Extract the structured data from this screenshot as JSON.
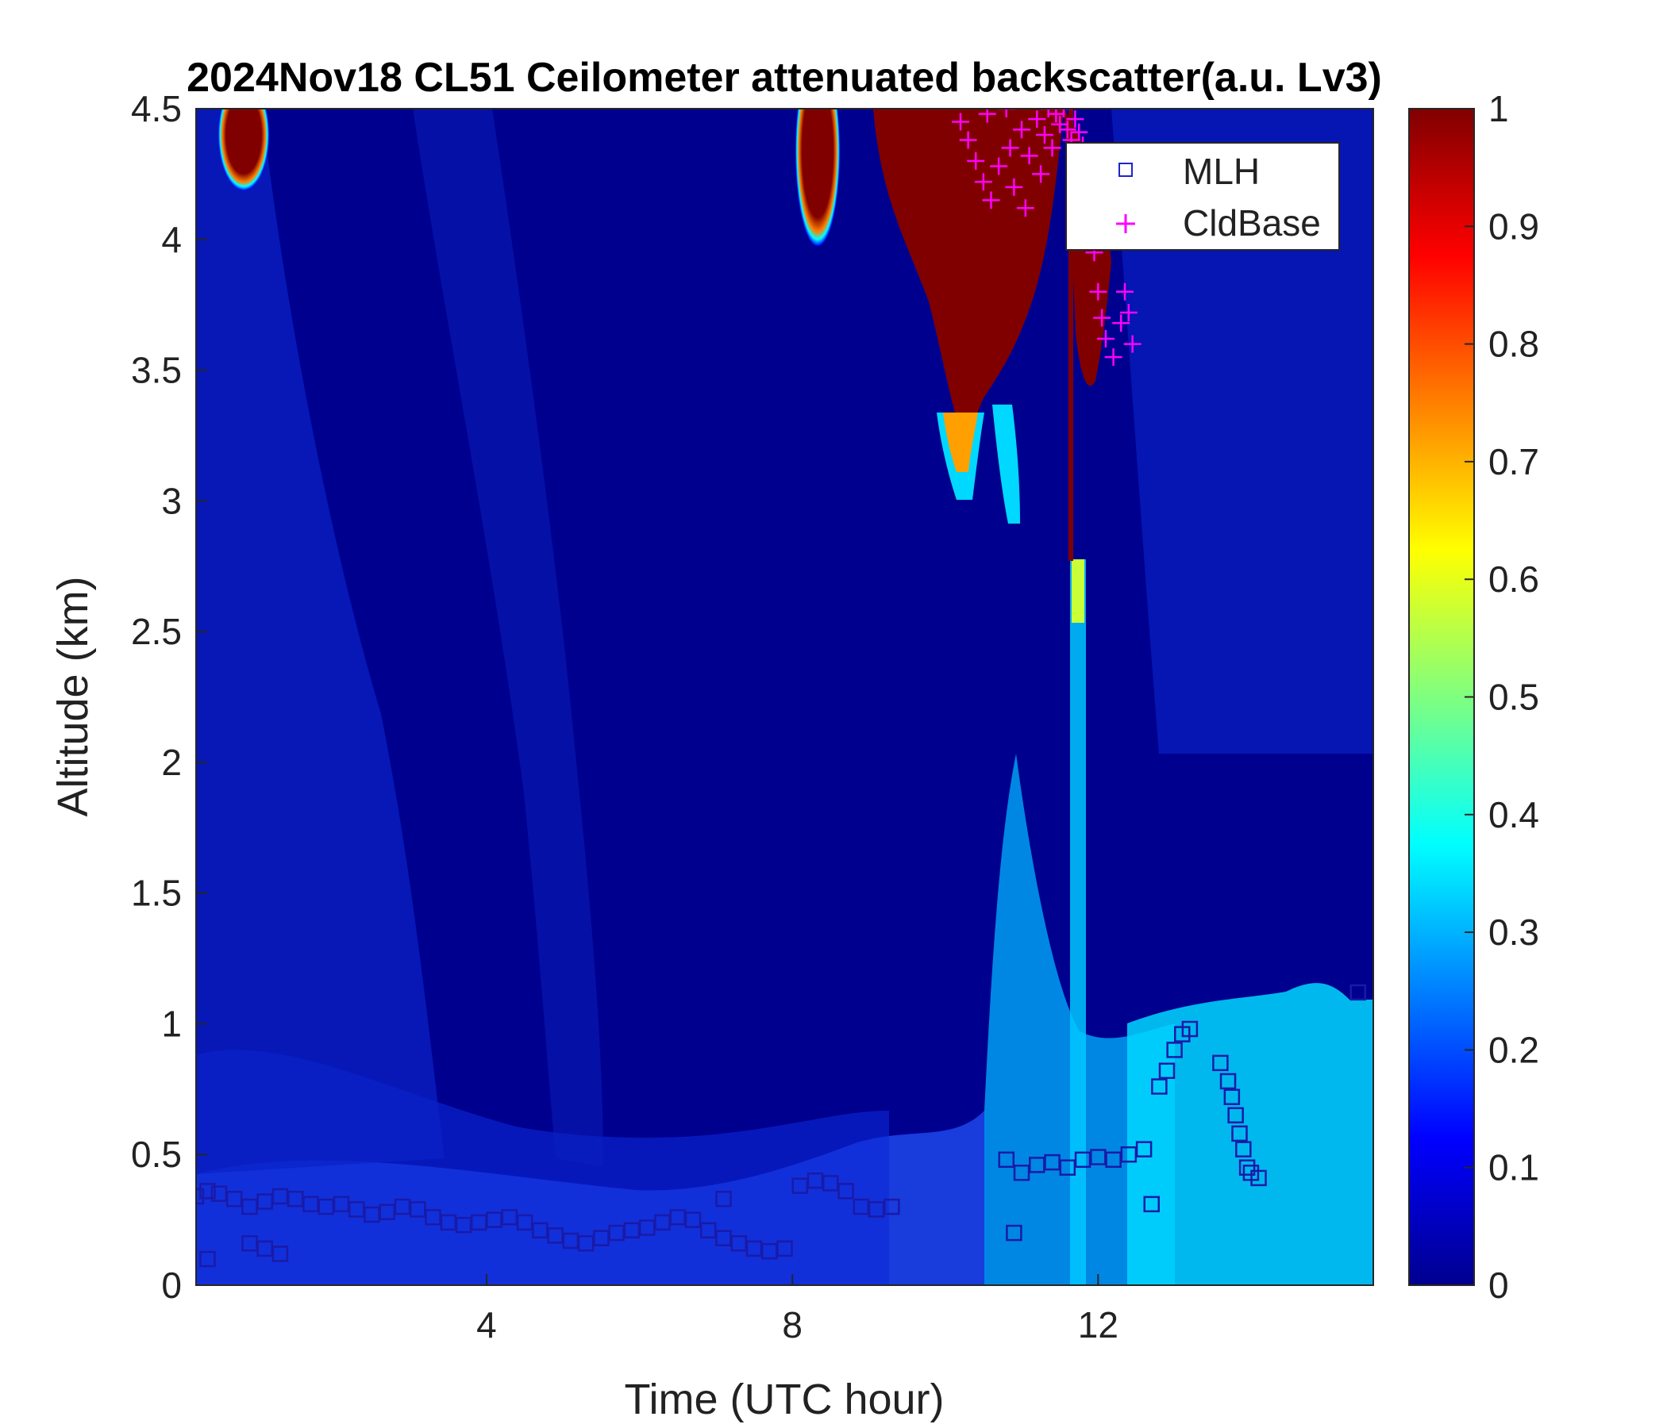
{
  "chart_data": {
    "type": "heatmap",
    "title": "2024Nov18 CL51 Ceilometer attenuated backscatter(a.u. Lv3)",
    "xlabel": "Time (UTC hour)",
    "ylabel": "Altitude (km)",
    "xlim": [
      0.2,
      15.6
    ],
    "ylim": [
      0,
      4.5
    ],
    "x_ticks": [
      4,
      8,
      12
    ],
    "y_ticks": [
      0,
      0.5,
      1,
      1.5,
      2,
      2.5,
      3,
      3.5,
      4,
      4.5
    ],
    "x_tick_labels": [
      "4",
      "8",
      "12"
    ],
    "y_tick_labels": [
      "0",
      "0.5",
      "1",
      "1.5",
      "2",
      "2.5",
      "3",
      "3.5",
      "4",
      "4.5"
    ],
    "colorbar": {
      "colormap": "jet",
      "range": [
        0,
        1
      ],
      "ticks": [
        0,
        0.1,
        0.2,
        0.3,
        0.4,
        0.5,
        0.6,
        0.7,
        0.8,
        0.9,
        1
      ],
      "tick_labels": [
        "0",
        "0.1",
        "0.2",
        "0.3",
        "0.4",
        "0.5",
        "0.6",
        "0.7",
        "0.8",
        "0.9",
        "1"
      ]
    },
    "legend": {
      "placement": "top-right",
      "entries": [
        {
          "label": "MLH",
          "marker": "square",
          "color": "#2222cc"
        },
        {
          "label": "CldBase",
          "marker": "plus",
          "color": "#ff00ff"
        }
      ]
    },
    "series": [
      {
        "name": "MLH",
        "x": [
          0.2,
          0.35,
          0.5,
          0.7,
          0.9,
          1.1,
          1.3,
          1.5,
          1.7,
          1.9,
          2.1,
          2.3,
          2.5,
          2.7,
          2.9,
          3.1,
          3.3,
          3.5,
          3.7,
          3.9,
          4.1,
          4.3,
          4.5,
          4.7,
          4.9,
          5.1,
          5.3,
          5.5,
          5.7,
          5.9,
          6.1,
          6.3,
          6.5,
          6.7,
          6.9,
          7.1,
          7.3,
          7.5,
          7.7,
          7.9,
          8.1,
          8.3,
          8.5,
          8.7,
          8.9,
          9.1,
          9.3,
          0.35,
          0.9,
          1.1,
          1.3,
          7.1,
          10.9,
          10.8,
          11.0,
          11.2,
          11.4,
          11.6,
          11.8,
          12.0,
          12.2,
          12.4,
          12.6,
          12.7,
          12.8,
          12.9,
          13.0,
          13.1,
          13.2,
          13.6,
          13.7,
          13.75,
          13.8,
          13.85,
          13.9,
          13.95,
          14.0,
          14.1,
          15.4
        ],
        "y": [
          0.34,
          0.36,
          0.35,
          0.33,
          0.3,
          0.32,
          0.34,
          0.33,
          0.31,
          0.3,
          0.31,
          0.29,
          0.27,
          0.28,
          0.3,
          0.29,
          0.26,
          0.24,
          0.23,
          0.24,
          0.25,
          0.26,
          0.24,
          0.21,
          0.19,
          0.17,
          0.16,
          0.18,
          0.2,
          0.21,
          0.22,
          0.24,
          0.26,
          0.25,
          0.21,
          0.18,
          0.16,
          0.14,
          0.13,
          0.14,
          0.38,
          0.4,
          0.39,
          0.36,
          0.3,
          0.29,
          0.3,
          0.1,
          0.16,
          0.14,
          0.12,
          0.33,
          0.2,
          0.48,
          0.43,
          0.46,
          0.47,
          0.45,
          0.48,
          0.49,
          0.48,
          0.5,
          0.52,
          0.31,
          0.76,
          0.82,
          0.9,
          0.96,
          0.98,
          0.85,
          0.78,
          0.72,
          0.65,
          0.58,
          0.52,
          0.45,
          0.43,
          0.41,
          1.12
        ]
      },
      {
        "name": "CldBase",
        "x": [
          10.2,
          10.3,
          10.4,
          10.5,
          10.55,
          10.6,
          10.7,
          10.8,
          10.85,
          10.9,
          11.0,
          11.05,
          11.1,
          11.2,
          11.25,
          11.3,
          11.35,
          11.4,
          11.45,
          11.5,
          11.55,
          11.6,
          11.65,
          11.7,
          11.75,
          11.8,
          11.85,
          11.9,
          11.95,
          12.0,
          12.05,
          12.1,
          12.2,
          12.3,
          12.35,
          12.4,
          12.45
        ],
        "y": [
          4.45,
          4.38,
          4.3,
          4.22,
          4.48,
          4.15,
          4.28,
          4.5,
          4.35,
          4.2,
          4.42,
          4.12,
          4.32,
          4.46,
          4.25,
          4.4,
          4.5,
          4.35,
          4.48,
          4.44,
          4.5,
          4.42,
          4.38,
          4.46,
          4.41,
          4.36,
          4.3,
          4.05,
          3.95,
          3.8,
          3.7,
          3.62,
          3.55,
          3.68,
          3.8,
          3.72,
          3.6
        ]
      }
    ]
  }
}
